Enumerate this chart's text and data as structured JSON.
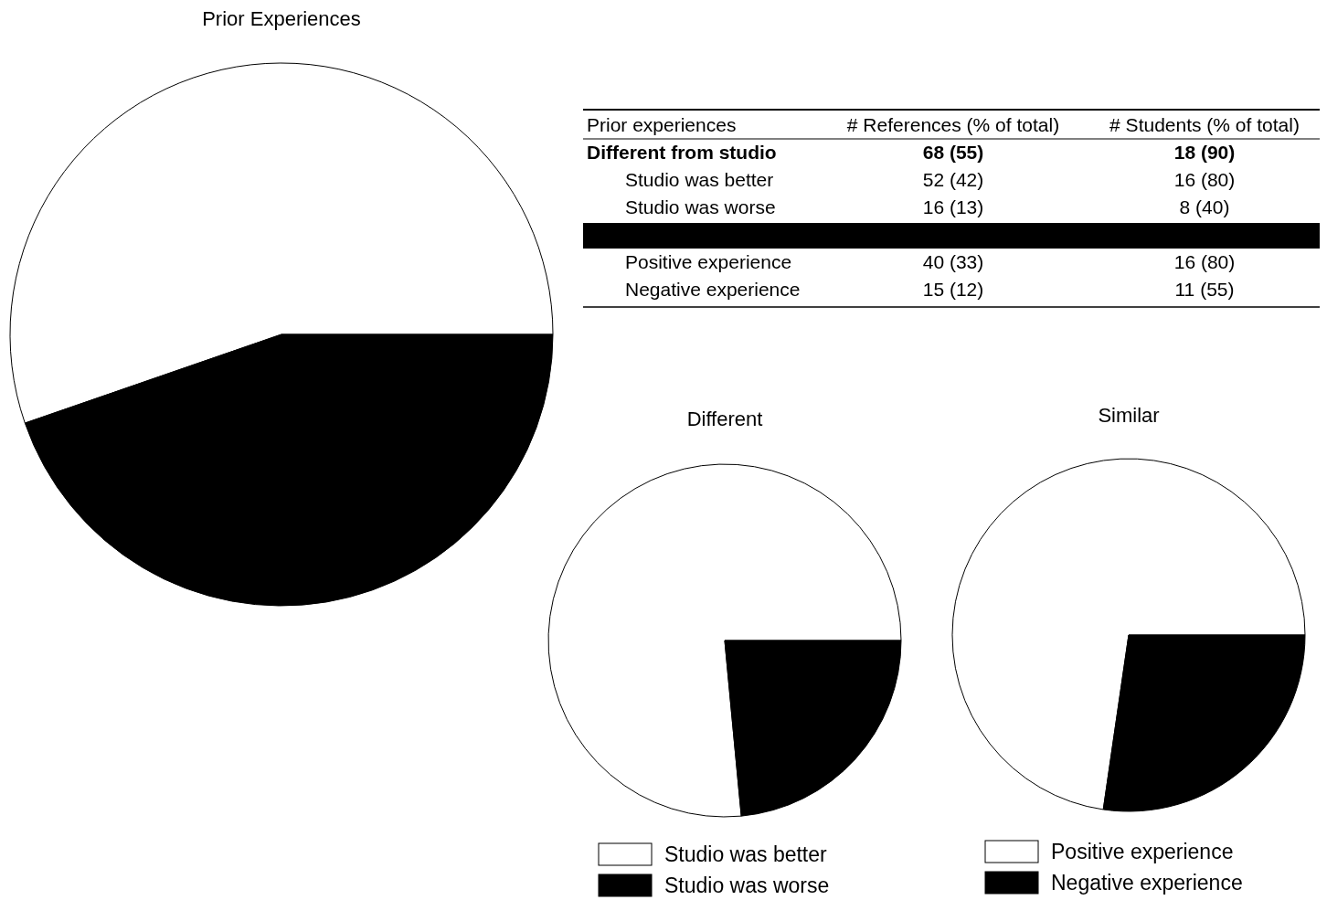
{
  "chart_data": [
    {
      "type": "pie",
      "title": "Prior Experiences",
      "categories": [
        null,
        null
      ],
      "values": [
        55.3,
        44.7
      ],
      "colors": [
        "#ffffff",
        "#000000"
      ],
      "legend": false
    },
    {
      "type": "other",
      "categories": [
        "Prior experiences",
        "# References (% of total)",
        "# Students (% of total)"
      ],
      "y_categories": [
        "Different from studio",
        "Studio was better",
        "Studio was worse",
        null,
        "Positive experience",
        "Negative experience"
      ],
      "cell_labels": [
        [
          "68 (55)",
          "18 (90)"
        ],
        [
          "52 (42)",
          "16 (80)"
        ],
        [
          "16 (13)",
          "8 (40)"
        ],
        [
          null,
          null
        ],
        [
          "40 (33)",
          "16 (80)"
        ],
        [
          "15 (12)",
          "11 (55)"
        ]
      ]
    },
    {
      "type": "pie",
      "title": "Different",
      "categories": [
        "Studio was better",
        "Studio was worse"
      ],
      "values": [
        76.5,
        23.5
      ],
      "colors": [
        "#ffffff",
        "#000000"
      ],
      "legend": "bottom"
    },
    {
      "type": "pie",
      "title": "Similar",
      "categories": [
        "Positive experience",
        "Negative experience"
      ],
      "values": [
        72.7,
        27.3
      ],
      "colors": [
        "#ffffff",
        "#000000"
      ],
      "legend": "bottom"
    }
  ]
}
